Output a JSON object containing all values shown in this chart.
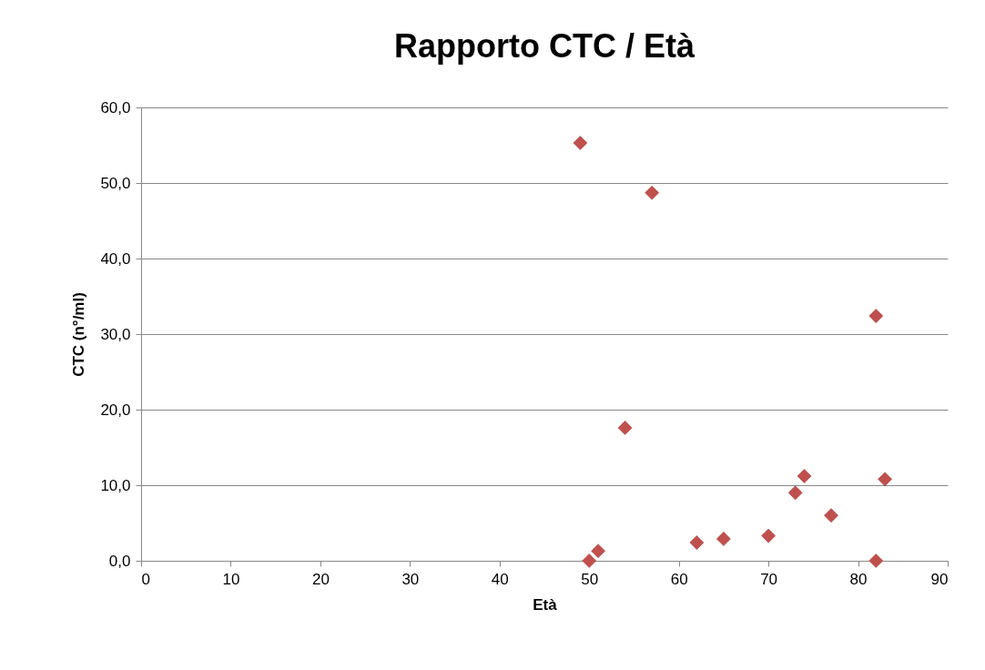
{
  "chart_data": {
    "type": "scatter",
    "title": "Rapporto CTC / Età",
    "xlabel": "Età",
    "ylabel": "CTC (n°/ml)",
    "x": [
      49,
      57,
      82,
      54,
      74,
      83,
      73,
      77,
      70,
      65,
      62,
      51,
      50,
      82
    ],
    "values": [
      55.3,
      48.7,
      32.4,
      17.6,
      11.2,
      10.8,
      9.0,
      6.0,
      3.3,
      2.9,
      2.4,
      1.3,
      0,
      0
    ],
    "color": "#c0504d",
    "marker": "diamond",
    "grid": "y",
    "xlim": [
      0,
      90
    ],
    "xticks": [
      0,
      10,
      20,
      30,
      40,
      50,
      60,
      70,
      80,
      90
    ],
    "ylim": [
      0,
      60
    ],
    "yticks": [
      {
        "value": 0,
        "label": "0,0"
      },
      {
        "value": 10,
        "label": "10,0"
      },
      {
        "value": 20,
        "label": "20,0"
      },
      {
        "value": 30,
        "label": "30,0"
      },
      {
        "value": 40,
        "label": "40,0"
      },
      {
        "value": 50,
        "label": "50,0"
      },
      {
        "value": 60,
        "label": "60,0"
      }
    ]
  }
}
